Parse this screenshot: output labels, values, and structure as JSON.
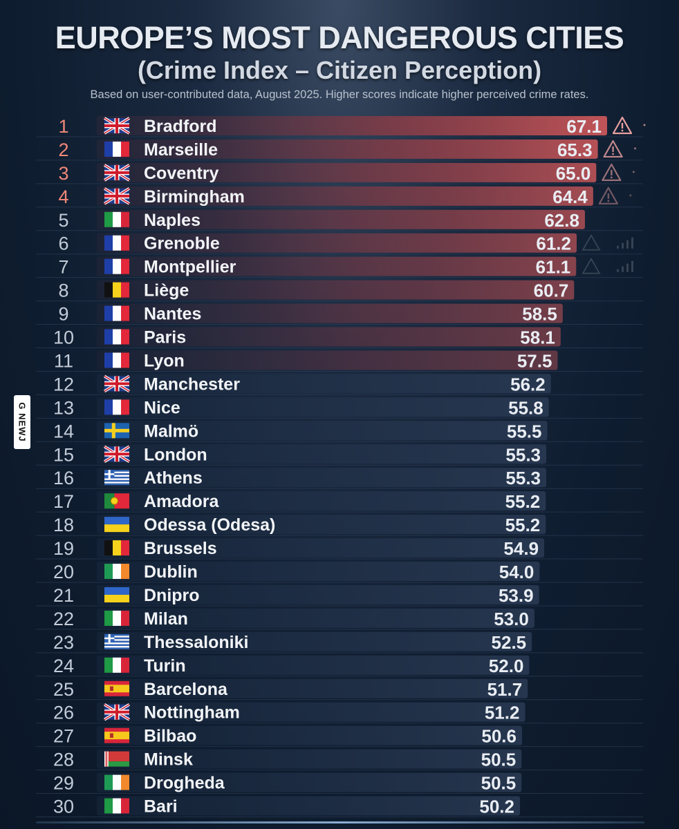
{
  "header": {
    "title": "EUROPE’S MOST DANGEROUS CITIES",
    "subtitle": "(Crime Index – Citizen Perception)",
    "note": "Based on user-contributed data, August 2025. Higher scores indicate higher perceived crime rates."
  },
  "watermark": "G NEWJ",
  "chart_data": {
    "type": "bar",
    "orientation": "horizontal",
    "title": "EUROPE’S MOST DANGEROUS CITIES",
    "subtitle": "(Crime Index – Citizen Perception)",
    "grid": false,
    "legend": "none",
    "xlim": [
      0,
      67.1
    ],
    "rows": [
      {
        "rank": "1",
        "flag": "uk",
        "city": "Bradford",
        "value": 67.1,
        "value_label": "67.1",
        "warning": true
      },
      {
        "rank": "2",
        "flag": "france",
        "city": "Marseille",
        "value": 65.3,
        "value_label": "65.3",
        "warning": true
      },
      {
        "rank": "3",
        "flag": "uk",
        "city": "Coventry",
        "value": 65.0,
        "value_label": "65.0",
        "warning": true
      },
      {
        "rank": "4",
        "flag": "uk",
        "city": "Birmingham",
        "value": 64.4,
        "value_label": "64.4",
        "warning": true
      },
      {
        "rank": "5",
        "flag": "italy",
        "city": "Naples",
        "value": 62.8,
        "value_label": "62.8",
        "warning": false
      },
      {
        "rank": "6",
        "flag": "france",
        "city": "Grenoble",
        "value": 61.2,
        "value_label": "61.2",
        "warning": false
      },
      {
        "rank": "7",
        "flag": "france",
        "city": "Montpellier",
        "value": 61.1,
        "value_label": "61.1",
        "warning": false
      },
      {
        "rank": "8",
        "flag": "belgium",
        "city": "Liège",
        "value": 60.7,
        "value_label": "60.7",
        "warning": false
      },
      {
        "rank": "9",
        "flag": "france",
        "city": "Nantes",
        "value": 58.5,
        "value_label": "58.5",
        "warning": false
      },
      {
        "rank": "10",
        "flag": "france",
        "city": "Paris",
        "value": 58.1,
        "value_label": "58.1",
        "warning": false
      },
      {
        "rank": "11",
        "flag": "france",
        "city": "Lyon",
        "value": 57.5,
        "value_label": "57.5",
        "warning": false
      },
      {
        "rank": "12",
        "flag": "uk",
        "city": "Manchester",
        "value": 56.2,
        "value_label": "56.2",
        "warning": false
      },
      {
        "rank": "13",
        "flag": "france",
        "city": "Nice",
        "value": 55.8,
        "value_label": "55.8",
        "warning": false
      },
      {
        "rank": "14",
        "flag": "sweden",
        "city": "Malmö",
        "value": 55.5,
        "value_label": "55.5",
        "warning": false
      },
      {
        "rank": "15",
        "flag": "uk",
        "city": "London",
        "value": 55.3,
        "value_label": "55.3",
        "warning": false
      },
      {
        "rank": "16",
        "flag": "greece",
        "city": "Athens",
        "value": 55.3,
        "value_label": "55.3",
        "warning": false
      },
      {
        "rank": "17",
        "flag": "portugal",
        "city": "Amadora",
        "value": 55.2,
        "value_label": "55.2",
        "warning": false
      },
      {
        "rank": "18",
        "flag": "ukraine",
        "city": "Odessa (Odesa)",
        "value": 55.2,
        "value_label": "55.2",
        "warning": false
      },
      {
        "rank": "19",
        "flag": "belgium",
        "city": "Brussels",
        "value": 54.9,
        "value_label": "54.9",
        "warning": false
      },
      {
        "rank": "20",
        "flag": "ireland",
        "city": "Dublin",
        "value": 54.0,
        "value_label": "54.0",
        "warning": false
      },
      {
        "rank": "21",
        "flag": "ukraine",
        "city": "Dnipro",
        "value": 53.9,
        "value_label": "53.9",
        "warning": false
      },
      {
        "rank": "22",
        "flag": "italy",
        "city": "Milan",
        "value": 53.0,
        "value_label": "53.0",
        "warning": false
      },
      {
        "rank": "23",
        "flag": "greece",
        "city": "Thessaloniki",
        "value": 52.5,
        "value_label": "52.5",
        "warning": false
      },
      {
        "rank": "24",
        "flag": "italy",
        "city": "Turin",
        "value": 52.0,
        "value_label": "52.0",
        "warning": false
      },
      {
        "rank": "25",
        "flag": "spain",
        "city": "Barcelona",
        "value": 51.7,
        "value_label": "51.7",
        "warning": false
      },
      {
        "rank": "26",
        "flag": "uk",
        "city": "Nottingham",
        "value": 51.2,
        "value_label": "51.2",
        "warning": false
      },
      {
        "rank": "27",
        "flag": "spain",
        "city": "Bilbao",
        "value": 50.6,
        "value_label": "50.6",
        "warning": false
      },
      {
        "rank": "28",
        "flag": "belarus",
        "city": "Minsk",
        "value": 50.5,
        "value_label": "50.5",
        "warning": false
      },
      {
        "rank": "29",
        "flag": "ireland",
        "city": "Drogheda",
        "value": 50.5,
        "value_label": "50.5",
        "warning": false
      },
      {
        "rank": "30",
        "flag": "italy",
        "city": "Bari",
        "value": 50.2,
        "value_label": "50.2",
        "warning": false
      }
    ],
    "colors": {
      "hot_bar": "#c0454a",
      "cool_bar": "#1d2c42",
      "rank_hot": "#f08878",
      "rank_cool": "#c3ccd8",
      "value_text": "#e9edf3",
      "city_text": "#f2f4f7"
    }
  }
}
